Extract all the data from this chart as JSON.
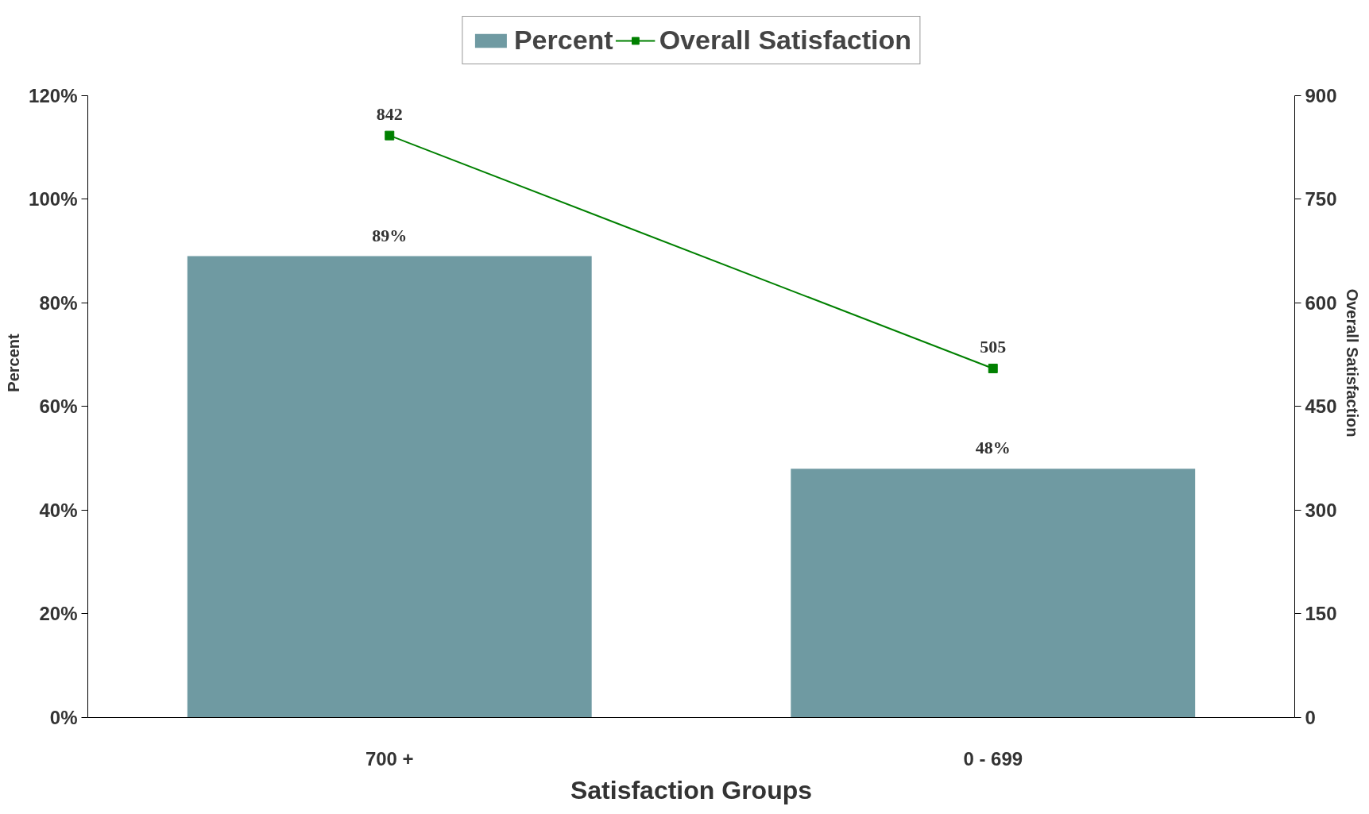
{
  "chart_data": {
    "type": "bar",
    "categories": [
      "700 +",
      "0 - 699"
    ],
    "xlabel": "Satisfaction Groups",
    "ylabel": "Percent",
    "y2label": "Overall Satisfaction",
    "ylim": [
      0,
      120
    ],
    "yticks": [
      {
        "value": 0,
        "label": "0%"
      },
      {
        "value": 20,
        "label": "20%"
      },
      {
        "value": 40,
        "label": "40%"
      },
      {
        "value": 60,
        "label": "60%"
      },
      {
        "value": 80,
        "label": "80%"
      },
      {
        "value": 100,
        "label": "100%"
      },
      {
        "value": 120,
        "label": "120%"
      }
    ],
    "y2lim": [
      0,
      900
    ],
    "y2ticks": [
      0,
      150,
      300,
      450,
      600,
      750,
      900
    ],
    "series": [
      {
        "name": "Percent",
        "color": "#6f9aa2",
        "values": [
          89,
          48
        ],
        "value_labels": [
          "89%",
          "48%"
        ]
      },
      {
        "name": "Overall Satisfaction",
        "type": "line",
        "axis": "y2",
        "color": "#008000",
        "values": [
          842,
          505
        ],
        "value_labels": [
          "842",
          "505"
        ]
      }
    ],
    "marker": "square",
    "legend": "top",
    "grid": false
  }
}
